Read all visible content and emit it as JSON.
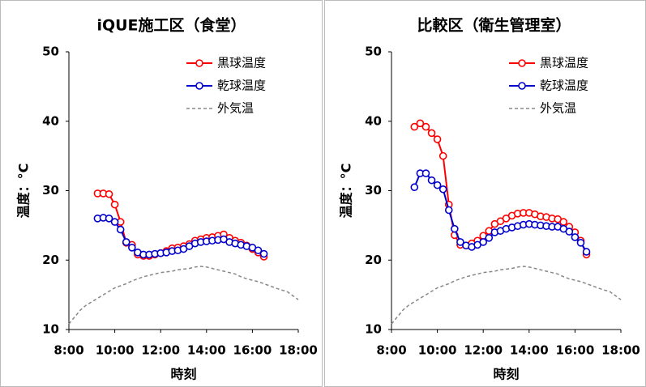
{
  "chart_data": [
    {
      "type": "line",
      "title": "iQUE施工区（食堂）",
      "xlabel": "時刻",
      "ylabel": "温度：°C",
      "x": [
        8,
        8.25,
        8.5,
        8.75,
        9,
        9.25,
        9.5,
        9.75,
        10,
        10.25,
        10.5,
        10.75,
        11,
        11.25,
        11.5,
        11.75,
        12,
        12.25,
        12.5,
        12.75,
        13,
        13.25,
        13.5,
        13.75,
        14,
        14.25,
        14.5,
        14.75,
        15,
        15.25,
        15.5,
        15.75,
        16,
        16.25,
        16.5,
        16.75,
        17,
        17.25,
        17.5,
        17.75,
        18
      ],
      "xlim": [
        8,
        18
      ],
      "xticks": [
        {
          "value": 8,
          "label": "8:00"
        },
        {
          "value": 10,
          "label": "10:00"
        },
        {
          "value": 12,
          "label": "12:00"
        },
        {
          "value": 14,
          "label": "14:00"
        },
        {
          "value": 16,
          "label": "16:00"
        },
        {
          "value": 18,
          "label": "18:00"
        }
      ],
      "ylim": [
        10,
        50
      ],
      "yticks": [
        10,
        20,
        30,
        40,
        50
      ],
      "grid": false,
      "legend": "upper right",
      "series": [
        {
          "name": "黒球温度",
          "color": "#ff0000",
          "marker": true,
          "dashed": false,
          "values": [
            null,
            null,
            null,
            null,
            null,
            29.6,
            29.6,
            29.5,
            28,
            25.5,
            22.5,
            22.2,
            20.8,
            20.6,
            20.6,
            20.8,
            21,
            21.3,
            21.7,
            21.8,
            22,
            22.3,
            22.8,
            23,
            23.2,
            23.3,
            23.5,
            23.7,
            23.2,
            22.8,
            22.5,
            22.1,
            21.6,
            21.1,
            20.5,
            null,
            null,
            null,
            null,
            null,
            null
          ]
        },
        {
          "name": "乾球温度",
          "color": "#0000cc",
          "marker": true,
          "dashed": false,
          "values": [
            null,
            null,
            null,
            null,
            null,
            26,
            26.1,
            26,
            25.5,
            24.4,
            22.6,
            21.8,
            21.1,
            20.8,
            20.8,
            20.9,
            21,
            21.1,
            21.3,
            21.4,
            21.6,
            22,
            22.4,
            22.6,
            22.7,
            22.8,
            22.9,
            23,
            22.6,
            22.4,
            22.2,
            22,
            21.8,
            21.4,
            20.9,
            null,
            null,
            null,
            null,
            null,
            null
          ]
        },
        {
          "name": "外気温",
          "color": "#888888",
          "marker": false,
          "dashed": true,
          "values": [
            10.8,
            11.8,
            12.8,
            13.5,
            14,
            14.5,
            15,
            15.5,
            16,
            16.3,
            16.6,
            17,
            17.3,
            17.6,
            17.8,
            18,
            18.2,
            18.3,
            18.4,
            18.6,
            18.7,
            18.8,
            19,
            19.1,
            19,
            18.8,
            18.6,
            18.4,
            18.2,
            18,
            17.6,
            17.3,
            17.1,
            16.9,
            16.6,
            16.3,
            16,
            15.7,
            15.5,
            14.9,
            14.3
          ]
        }
      ]
    },
    {
      "type": "line",
      "title": "比較区（衛生管理室）",
      "xlabel": "時刻",
      "ylabel": "温度：°C",
      "x": [
        8,
        8.25,
        8.5,
        8.75,
        9,
        9.25,
        9.5,
        9.75,
        10,
        10.25,
        10.5,
        10.75,
        11,
        11.25,
        11.5,
        11.75,
        12,
        12.25,
        12.5,
        12.75,
        13,
        13.25,
        13.5,
        13.75,
        14,
        14.25,
        14.5,
        14.75,
        15,
        15.25,
        15.5,
        15.75,
        16,
        16.25,
        16.5,
        16.75,
        17,
        17.25,
        17.5,
        17.75,
        18
      ],
      "xlim": [
        8,
        18
      ],
      "xticks": [
        {
          "value": 8,
          "label": "8:00"
        },
        {
          "value": 10,
          "label": "10:00"
        },
        {
          "value": 12,
          "label": "12:00"
        },
        {
          "value": 14,
          "label": "14:00"
        },
        {
          "value": 16,
          "label": "16:00"
        },
        {
          "value": 18,
          "label": "18:00"
        }
      ],
      "ylim": [
        10,
        50
      ],
      "yticks": [
        10,
        20,
        30,
        40,
        50
      ],
      "grid": false,
      "legend": "upper right",
      "series": [
        {
          "name": "黒球温度",
          "color": "#ff0000",
          "marker": true,
          "dashed": false,
          "values": [
            null,
            null,
            null,
            null,
            39.2,
            39.7,
            39.2,
            38.3,
            37.4,
            35,
            28,
            23.6,
            22.2,
            22.1,
            22.4,
            22.8,
            23.5,
            24.2,
            25.2,
            25.6,
            26,
            26.4,
            26.7,
            26.8,
            26.8,
            26.6,
            26.3,
            26.2,
            26,
            25.9,
            25.5,
            24.8,
            24,
            22.8,
            20.8,
            null,
            null,
            null,
            null,
            null,
            null
          ]
        },
        {
          "name": "乾球温度",
          "color": "#0000cc",
          "marker": true,
          "dashed": false,
          "values": [
            null,
            null,
            null,
            null,
            30.5,
            32.5,
            32.5,
            31.5,
            30.8,
            30.2,
            27.2,
            24.5,
            22.6,
            22.1,
            21.9,
            22.2,
            22.6,
            23.2,
            24,
            24.2,
            24.5,
            24.7,
            24.9,
            25.1,
            25.2,
            25.1,
            25,
            24.9,
            24.8,
            24.8,
            24.5,
            24.1,
            23.3,
            22.5,
            21.2,
            null,
            null,
            null,
            null,
            null,
            null
          ]
        },
        {
          "name": "外気温",
          "color": "#888888",
          "marker": false,
          "dashed": true,
          "values": [
            10.8,
            11.8,
            12.8,
            13.5,
            14,
            14.5,
            15,
            15.5,
            16,
            16.3,
            16.6,
            17,
            17.3,
            17.6,
            17.8,
            18,
            18.2,
            18.3,
            18.4,
            18.6,
            18.7,
            18.8,
            19,
            19.1,
            19,
            18.8,
            18.6,
            18.4,
            18.2,
            18,
            17.6,
            17.3,
            17.1,
            16.9,
            16.6,
            16.3,
            16,
            15.7,
            15.5,
            14.9,
            14.3
          ]
        }
      ]
    }
  ]
}
